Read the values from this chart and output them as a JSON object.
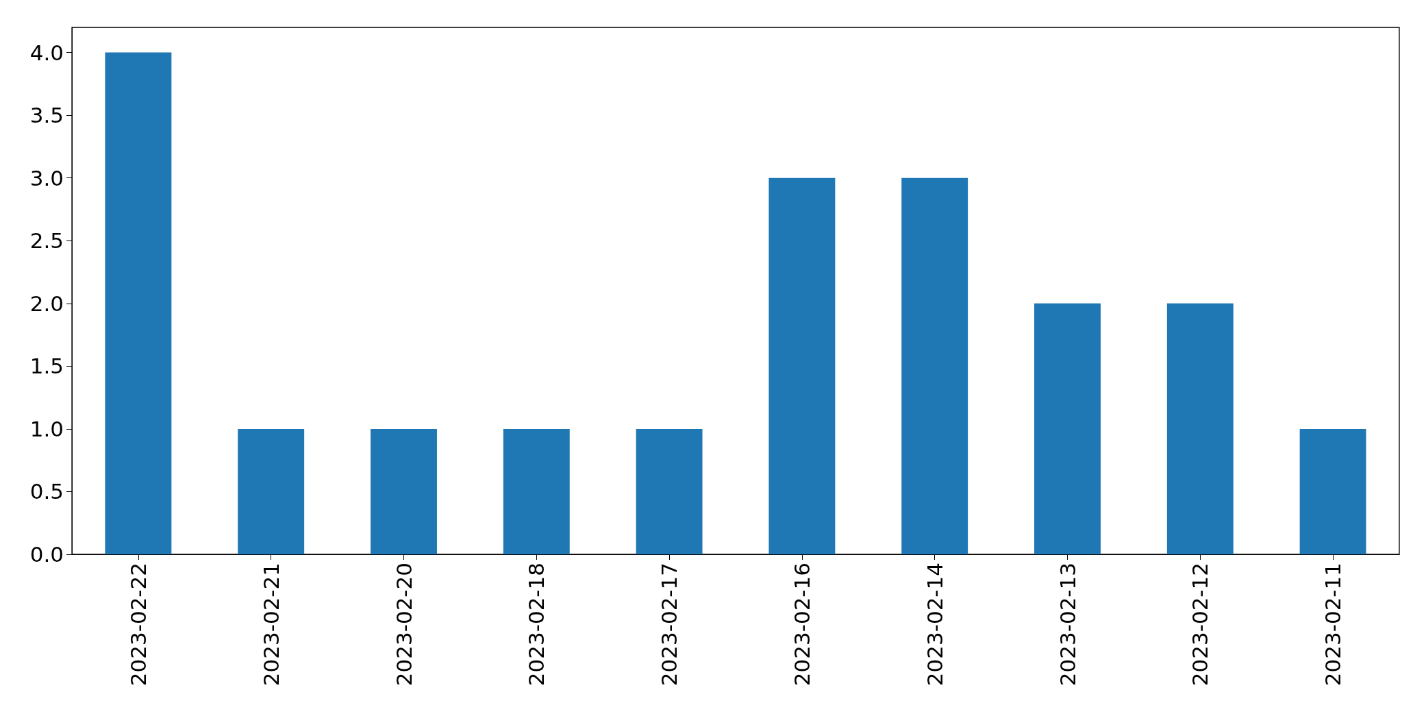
{
  "chart_data": {
    "type": "bar",
    "categories": [
      "2023-02-22",
      "2023-02-21",
      "2023-02-20",
      "2023-02-18",
      "2023-02-17",
      "2023-02-16",
      "2023-02-14",
      "2023-02-13",
      "2023-02-12",
      "2023-02-11"
    ],
    "values": [
      4,
      1,
      1,
      1,
      1,
      3,
      3,
      2,
      2,
      1
    ],
    "color": "#1f77b4",
    "ylim": [
      0,
      4.2
    ],
    "yticks": [
      {
        "value": 0,
        "label": "0.0"
      },
      {
        "value": 0.5,
        "label": "0.5"
      },
      {
        "value": 1,
        "label": "1.0"
      },
      {
        "value": 1.5,
        "label": "1.5"
      },
      {
        "value": 2,
        "label": "2.0"
      },
      {
        "value": 2.5,
        "label": "2.5"
      },
      {
        "value": 3,
        "label": "3.0"
      },
      {
        "value": 3.5,
        "label": "3.5"
      },
      {
        "value": 4,
        "label": "4.0"
      }
    ],
    "grid": false
  }
}
